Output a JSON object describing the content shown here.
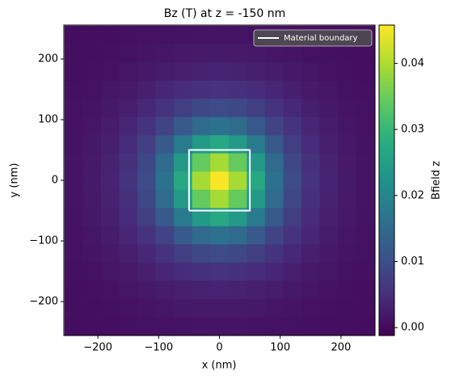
{
  "chart_data": {
    "type": "heatmap",
    "title": "Bz (T) at z = -150 nm",
    "x_label": "x (nm)",
    "y_label": "y (nm)",
    "colorbar_label": "Bfield z",
    "colormap": "viridis",
    "x": [
      -240,
      -210,
      -180,
      -150,
      -120,
      -90,
      -60,
      -30,
      0,
      30,
      60,
      90,
      120,
      150,
      180,
      210,
      240
    ],
    "y": [
      -240,
      -210,
      -180,
      -150,
      -120,
      -90,
      -60,
      -30,
      0,
      30,
      60,
      90,
      120,
      150,
      180,
      210,
      240
    ],
    "z": [
      [
        0.0004,
        0.0005,
        0.0006,
        0.0008,
        0.0009,
        0.0011,
        0.0012,
        0.0013,
        0.0014,
        0.0013,
        0.0012,
        0.0011,
        0.0009,
        0.0008,
        0.0006,
        0.0005,
        0.0004
      ],
      [
        0.0005,
        0.0007,
        0.0008,
        0.0011,
        0.0013,
        0.0016,
        0.0019,
        0.002,
        0.0021,
        0.002,
        0.0019,
        0.0016,
        0.0013,
        0.0011,
        0.0008,
        0.0007,
        0.0005
      ],
      [
        0.0006,
        0.0008,
        0.0011,
        0.0015,
        0.0019,
        0.0024,
        0.0029,
        0.0032,
        0.0034,
        0.0032,
        0.0029,
        0.0024,
        0.0019,
        0.0015,
        0.0011,
        0.0008,
        0.0006
      ],
      [
        0.0008,
        0.0011,
        0.0015,
        0.002,
        0.0028,
        0.0037,
        0.0046,
        0.0053,
        0.0056,
        0.0053,
        0.0046,
        0.0037,
        0.0028,
        0.002,
        0.0015,
        0.0011,
        0.0008
      ],
      [
        0.0009,
        0.0013,
        0.0019,
        0.0028,
        0.004,
        0.0056,
        0.0074,
        0.0089,
        0.0095,
        0.0089,
        0.0074,
        0.0056,
        0.004,
        0.0028,
        0.0019,
        0.0013,
        0.0009
      ],
      [
        0.0011,
        0.0016,
        0.0024,
        0.0037,
        0.0056,
        0.0083,
        0.0118,
        0.015,
        0.0163,
        0.015,
        0.0118,
        0.0083,
        0.0056,
        0.0037,
        0.0024,
        0.0016,
        0.0011
      ],
      [
        0.0012,
        0.0019,
        0.0029,
        0.0046,
        0.0074,
        0.0118,
        0.0179,
        0.0242,
        0.027,
        0.0242,
        0.0179,
        0.0118,
        0.0074,
        0.0046,
        0.0029,
        0.0019,
        0.0012
      ],
      [
        0.0013,
        0.002,
        0.0032,
        0.0053,
        0.0089,
        0.015,
        0.0242,
        0.0345,
        0.0394,
        0.0345,
        0.0242,
        0.015,
        0.0089,
        0.0053,
        0.0032,
        0.002,
        0.0013
      ],
      [
        0.0014,
        0.0021,
        0.0034,
        0.0056,
        0.0095,
        0.0163,
        0.027,
        0.0394,
        0.0455,
        0.0394,
        0.027,
        0.0163,
        0.0095,
        0.0056,
        0.0034,
        0.0021,
        0.0014
      ],
      [
        0.0013,
        0.002,
        0.0032,
        0.0053,
        0.0089,
        0.015,
        0.0242,
        0.0345,
        0.0394,
        0.0345,
        0.0242,
        0.015,
        0.0089,
        0.0053,
        0.0032,
        0.002,
        0.0013
      ],
      [
        0.0012,
        0.0019,
        0.0029,
        0.0046,
        0.0074,
        0.0118,
        0.0179,
        0.0242,
        0.027,
        0.0242,
        0.0179,
        0.0118,
        0.0074,
        0.0046,
        0.0029,
        0.0019,
        0.0012
      ],
      [
        0.0011,
        0.0016,
        0.0024,
        0.0037,
        0.0056,
        0.0083,
        0.0118,
        0.015,
        0.0163,
        0.015,
        0.0118,
        0.0083,
        0.0056,
        0.0037,
        0.0024,
        0.0016,
        0.0011
      ],
      [
        0.0009,
        0.0013,
        0.0019,
        0.0028,
        0.004,
        0.0056,
        0.0074,
        0.0089,
        0.0095,
        0.0089,
        0.0074,
        0.0056,
        0.004,
        0.0028,
        0.0019,
        0.0013,
        0.0009
      ],
      [
        0.0008,
        0.0011,
        0.0015,
        0.002,
        0.0028,
        0.0037,
        0.0046,
        0.0053,
        0.0056,
        0.0053,
        0.0046,
        0.0037,
        0.0028,
        0.002,
        0.0015,
        0.0011,
        0.0008
      ],
      [
        0.0006,
        0.0008,
        0.0011,
        0.0015,
        0.0019,
        0.0024,
        0.0029,
        0.0032,
        0.0034,
        0.0032,
        0.0029,
        0.0024,
        0.0019,
        0.0015,
        0.0011,
        0.0008,
        0.0006
      ],
      [
        0.0005,
        0.0007,
        0.0008,
        0.0011,
        0.0013,
        0.0016,
        0.0019,
        0.002,
        0.0021,
        0.002,
        0.0019,
        0.0016,
        0.0013,
        0.0011,
        0.0008,
        0.0007,
        0.0005
      ],
      [
        0.0004,
        0.0005,
        0.0006,
        0.0008,
        0.0009,
        0.0011,
        0.0012,
        0.0013,
        0.0014,
        0.0013,
        0.0012,
        0.0011,
        0.0009,
        0.0008,
        0.0006,
        0.0005,
        0.0004
      ]
    ],
    "xlim": [
      -256,
      256
    ],
    "ylim": [
      -256,
      256
    ],
    "xticks": [
      {
        "value": -200,
        "label": "−200"
      },
      {
        "value": -100,
        "label": "−100"
      },
      0,
      100,
      200
    ],
    "yticks": [
      {
        "value": -200,
        "label": "−200"
      },
      {
        "value": -100,
        "label": "−100"
      },
      0,
      100,
      200
    ],
    "clim": [
      -0.0012,
      0.0458
    ],
    "cticks": [
      {
        "value": 0,
        "label": "0.00"
      },
      {
        "value": 0.01,
        "label": "0.01"
      },
      {
        "value": 0.02,
        "label": "0.02"
      },
      {
        "value": 0.03,
        "label": "0.03"
      },
      {
        "value": 0.04,
        "label": "0.04"
      }
    ],
    "boundary": {
      "name": "Material boundary",
      "color": "#ffffff",
      "x": [
        -50,
        50,
        50,
        -50,
        -50
      ],
      "y": [
        -50,
        -50,
        50,
        50,
        -50
      ]
    },
    "legend": "upper right"
  }
}
